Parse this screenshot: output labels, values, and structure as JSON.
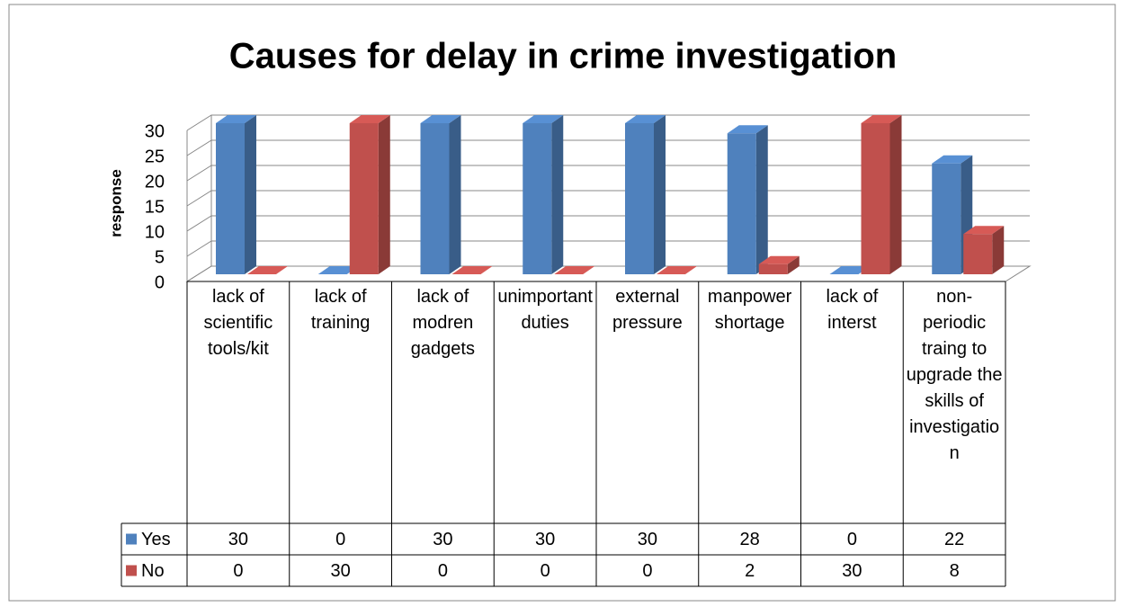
{
  "chart_data": {
    "type": "bar3d",
    "title": "Causes for delay in crime investigation",
    "y_label": "response",
    "categories": [
      "lack of scientific tools/kit",
      "lack of training",
      "lack of modren gadgets",
      "unimportant duties",
      "external pressure",
      "manpower shortage",
      "lack of interst",
      "non-periodic traing to upgrade the skills of investigation"
    ],
    "series": [
      {
        "name": "Yes",
        "color": "#4f81bd",
        "values": [
          30,
          0,
          30,
          30,
          30,
          28,
          0,
          22
        ]
      },
      {
        "name": "No",
        "color": "#c0504d",
        "values": [
          0,
          30,
          0,
          0,
          0,
          2,
          30,
          8
        ]
      }
    ],
    "ylim": [
      0,
      30
    ],
    "yticks": [
      0,
      5,
      10,
      15,
      20,
      25,
      30
    ],
    "grid": true,
    "data_table": true
  }
}
